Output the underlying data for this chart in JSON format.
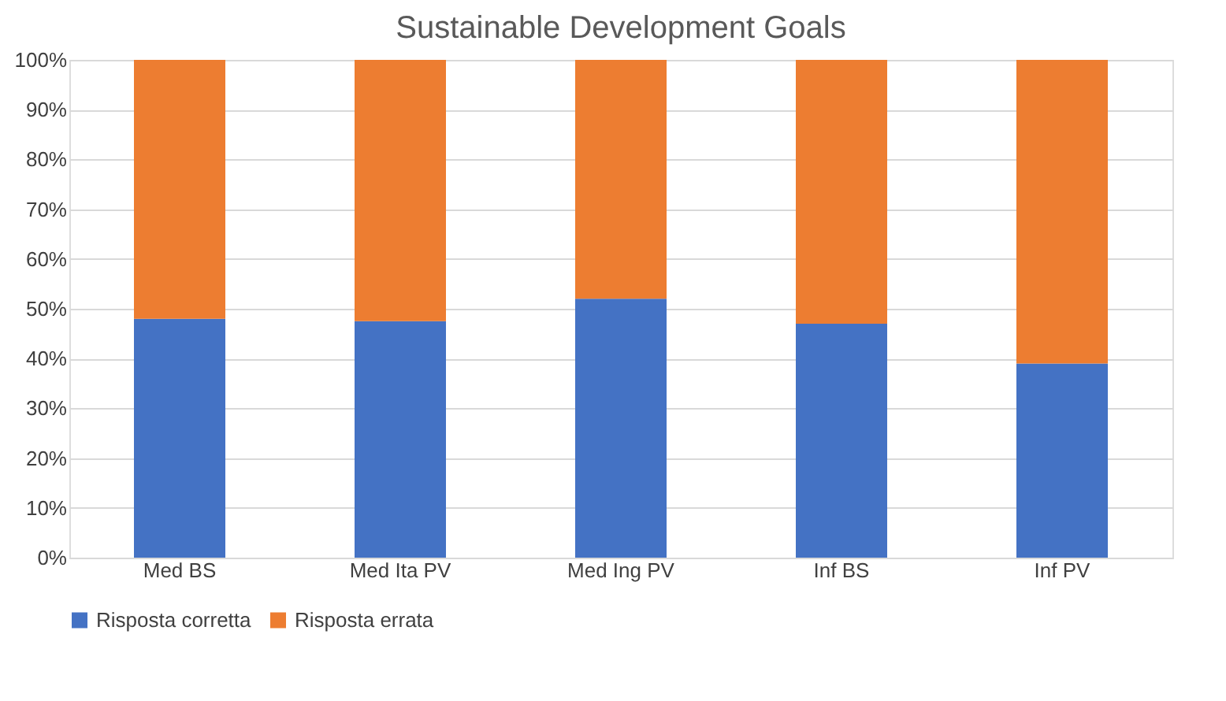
{
  "chart_data": {
    "type": "bar",
    "title": "Sustainable Development Goals",
    "stacked": true,
    "categories": [
      "Med BS",
      "Med Ita PV",
      "Med Ing PV",
      "Inf BS",
      "Inf PV"
    ],
    "series": [
      {
        "name": "Risposta corretta",
        "color": "#4472c4",
        "values": [
          48,
          47.5,
          52,
          47,
          39
        ]
      },
      {
        "name": "Risposta errata",
        "color": "#ed7d31",
        "values": [
          52,
          52.5,
          48,
          53,
          61
        ]
      }
    ],
    "ylim": [
      0,
      100
    ],
    "yticks": [
      {
        "value": 0,
        "label": "0%"
      },
      {
        "value": 10,
        "label": "10%"
      },
      {
        "value": 20,
        "label": "20%"
      },
      {
        "value": 30,
        "label": "30%"
      },
      {
        "value": 40,
        "label": "40%"
      },
      {
        "value": 50,
        "label": "50%"
      },
      {
        "value": 60,
        "label": "60%"
      },
      {
        "value": 70,
        "label": "70%"
      },
      {
        "value": 80,
        "label": "80%"
      },
      {
        "value": 90,
        "label": "90%"
      },
      {
        "value": 100,
        "label": "100%"
      }
    ],
    "grid": "y",
    "legend": "bottom"
  }
}
